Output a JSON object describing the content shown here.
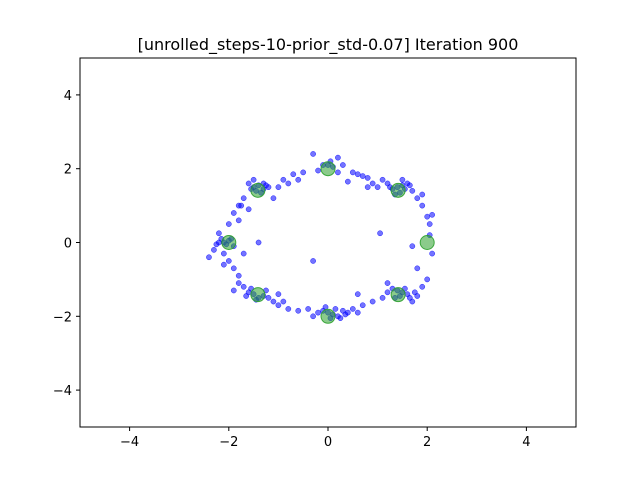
{
  "chart_data": {
    "type": "scatter",
    "title": "[unrolled_steps-10-prior_std-0.07] Iteration 900",
    "xlabel": "",
    "ylabel": "",
    "xlim": [
      -5,
      5
    ],
    "ylim": [
      -5,
      5
    ],
    "xticks": [
      -4,
      -2,
      0,
      2,
      4
    ],
    "yticks": [
      -4,
      -2,
      0,
      2,
      4
    ],
    "grid": false,
    "legend": "none",
    "series": [
      {
        "role": "generated samples",
        "color": "#0000ff",
        "alpha": 0.55,
        "points": [
          [
            0.0,
            2.1
          ],
          [
            0.1,
            2.05
          ],
          [
            -0.1,
            2.1
          ],
          [
            0.2,
            2.3
          ],
          [
            -0.3,
            2.4
          ],
          [
            0.3,
            2.1
          ],
          [
            -0.2,
            1.95
          ],
          [
            0.05,
            2.2
          ],
          [
            0.5,
            1.9
          ],
          [
            0.7,
            1.8
          ],
          [
            0.8,
            1.75
          ],
          [
            0.6,
            1.85
          ],
          [
            -0.5,
            1.9
          ],
          [
            -0.7,
            1.85
          ],
          [
            -0.9,
            1.7
          ],
          [
            -1.0,
            1.5
          ],
          [
            -1.5,
            1.7
          ],
          [
            -1.4,
            1.55
          ],
          [
            -1.3,
            1.45
          ],
          [
            -1.2,
            1.5
          ],
          [
            -1.5,
            1.5
          ],
          [
            -1.6,
            1.6
          ],
          [
            -1.45,
            1.4
          ],
          [
            -1.25,
            1.55
          ],
          [
            -1.35,
            1.35
          ],
          [
            -1.55,
            1.45
          ],
          [
            -1.7,
            1.2
          ],
          [
            -1.8,
            1.0
          ],
          [
            -1.9,
            0.8
          ],
          [
            -2.0,
            0.5
          ],
          [
            -1.8,
            0.6
          ],
          [
            -1.6,
            0.9
          ],
          [
            1.4,
            1.5
          ],
          [
            1.5,
            1.55
          ],
          [
            1.6,
            1.6
          ],
          [
            1.3,
            1.45
          ],
          [
            1.45,
            1.35
          ],
          [
            1.55,
            1.45
          ],
          [
            1.65,
            1.55
          ],
          [
            1.25,
            1.5
          ],
          [
            1.7,
            1.4
          ],
          [
            1.2,
            1.6
          ],
          [
            1.35,
            1.3
          ],
          [
            1.8,
            1.2
          ],
          [
            1.9,
            1.0
          ],
          [
            2.0,
            0.7
          ],
          [
            2.05,
            0.5
          ],
          [
            1.1,
            1.7
          ],
          [
            -2.1,
            0.0
          ],
          [
            -2.0,
            0.05
          ],
          [
            -2.2,
            0.0
          ],
          [
            -2.05,
            -0.05
          ],
          [
            -1.95,
            0.1
          ],
          [
            -2.15,
            0.1
          ],
          [
            -2.25,
            -0.05
          ],
          [
            -1.9,
            -0.1
          ],
          [
            -2.3,
            -0.2
          ],
          [
            -2.4,
            -0.4
          ],
          [
            -2.1,
            -0.3
          ],
          [
            -2.0,
            -0.5
          ],
          [
            -1.9,
            -0.7
          ],
          [
            -1.8,
            -0.9
          ],
          [
            -2.2,
            0.25
          ],
          [
            -1.7,
            -0.3
          ],
          [
            -1.5,
            -1.4
          ],
          [
            -1.4,
            -1.5
          ],
          [
            -1.6,
            -1.35
          ],
          [
            -1.3,
            -1.45
          ],
          [
            -1.55,
            -1.25
          ],
          [
            -1.45,
            -1.55
          ],
          [
            -1.2,
            -1.5
          ],
          [
            -1.7,
            -1.2
          ],
          [
            -1.8,
            -1.1
          ],
          [
            -1.9,
            -1.3
          ],
          [
            -1.1,
            -1.6
          ],
          [
            -1.0,
            -1.7
          ],
          [
            -0.8,
            -1.8
          ],
          [
            -0.6,
            -1.85
          ],
          [
            -1.25,
            -1.3
          ],
          [
            -1.65,
            -1.45
          ],
          [
            0.0,
            -1.9
          ],
          [
            0.1,
            -1.95
          ],
          [
            -0.1,
            -1.85
          ],
          [
            0.2,
            -2.0
          ],
          [
            -0.2,
            -1.9
          ],
          [
            0.3,
            -1.85
          ],
          [
            0.05,
            -2.05
          ],
          [
            -0.05,
            -1.75
          ],
          [
            0.15,
            -1.8
          ],
          [
            0.25,
            -2.05
          ],
          [
            -0.3,
            -2.0
          ],
          [
            0.4,
            -1.9
          ],
          [
            0.5,
            -1.8
          ],
          [
            0.7,
            -1.7
          ],
          [
            -0.4,
            -1.8
          ],
          [
            0.35,
            -1.95
          ],
          [
            1.4,
            -1.3
          ],
          [
            1.5,
            -1.35
          ],
          [
            1.6,
            -1.4
          ],
          [
            1.3,
            -1.25
          ],
          [
            1.45,
            -1.45
          ],
          [
            1.55,
            -1.25
          ],
          [
            1.65,
            -1.5
          ],
          [
            1.75,
            -1.35
          ],
          [
            1.35,
            -1.5
          ],
          [
            1.8,
            -1.45
          ],
          [
            1.2,
            -1.35
          ],
          [
            1.9,
            -1.2
          ],
          [
            2.0,
            -1.0
          ],
          [
            1.1,
            -1.5
          ],
          [
            0.9,
            -1.6
          ],
          [
            1.7,
            -1.6
          ],
          [
            0.2,
            1.9
          ],
          [
            0.9,
            1.6
          ],
          [
            1.0,
            1.5
          ],
          [
            -0.8,
            1.6
          ],
          [
            -1.1,
            1.2
          ],
          [
            2.1,
            -0.3
          ],
          [
            -0.9,
            -1.6
          ],
          [
            0.6,
            -1.9
          ],
          [
            1.2,
            -1.1
          ],
          [
            -1.3,
            1.6
          ],
          [
            1.9,
            1.3
          ],
          [
            1.05,
            0.25
          ],
          [
            1.7,
            -0.1
          ],
          [
            -0.3,
            -0.5
          ],
          [
            0.6,
            -1.4
          ],
          [
            -1.4,
            0.0
          ],
          [
            1.8,
            -0.7
          ],
          [
            0.8,
            1.5
          ],
          [
            -0.6,
            1.7
          ],
          [
            1.5,
            1.7
          ],
          [
            2.05,
            0.2
          ],
          [
            -2.1,
            -0.6
          ],
          [
            -1.0,
            -1.4
          ],
          [
            0.4,
            1.65
          ],
          [
            2.1,
            0.75
          ],
          [
            -1.75,
            1.0
          ]
        ]
      },
      {
        "role": "target modes",
        "color": "#2ca02c",
        "alpha": 0.55,
        "points": [
          [
            2.0,
            0.0
          ],
          [
            1.414,
            1.414
          ],
          [
            0.0,
            2.0
          ],
          [
            -1.414,
            1.414
          ],
          [
            -2.0,
            0.0
          ],
          [
            -1.414,
            -1.414
          ],
          [
            0.0,
            -2.0
          ],
          [
            1.414,
            -1.414
          ]
        ]
      }
    ]
  }
}
